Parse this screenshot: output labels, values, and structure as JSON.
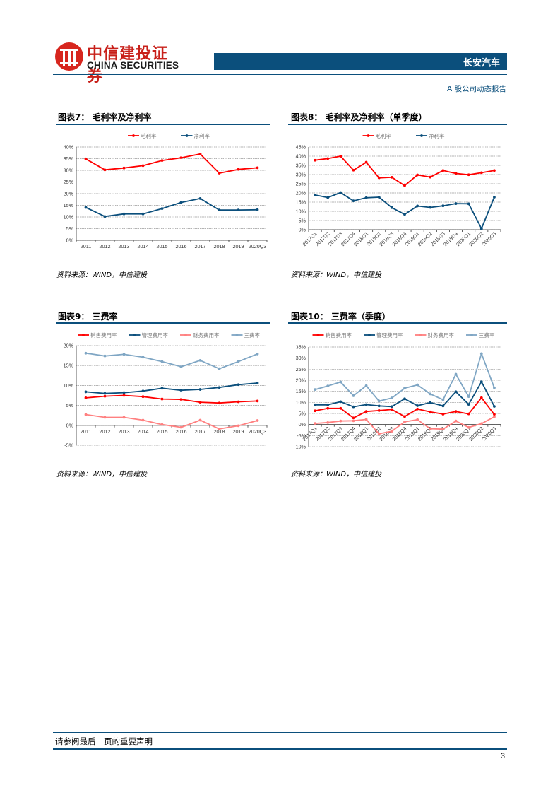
{
  "header": {
    "logo_cn": "中信建投证券",
    "logo_en": "CHINA SECURITIES",
    "company": "长安汽车",
    "report_type": "A 股公司动态报告"
  },
  "figures": [
    {
      "title": "图表7：  毛利率及净利率",
      "source": "资料来源：WIND，中信建投"
    },
    {
      "title": "图表8：  毛利率及净利率（单季度）",
      "source": "资料来源：WIND，中信建投"
    },
    {
      "title": "图表9：  三费率",
      "source": "资料来源：WIND，中信建投"
    },
    {
      "title": "图表10：  三费率（季度）",
      "source": "资料来源：WIND，中信建投"
    }
  ],
  "footer": {
    "disclaimer": "请参阅最后一页的重要声明",
    "page_number": "3"
  },
  "chart_data": [
    {
      "type": "line",
      "title": "毛利率及净利率",
      "categories": [
        "2011",
        "2012",
        "2013",
        "2014",
        "2015",
        "2016",
        "2017",
        "2018",
        "2019",
        "2020Q3"
      ],
      "series": [
        {
          "name": "毛利率",
          "color": "#ff0000",
          "values": [
            34.9,
            30.2,
            31.0,
            32.0,
            34.2,
            35.4,
            37.0,
            28.8,
            30.4,
            31.1
          ]
        },
        {
          "name": "净利率",
          "color": "#0b4f7c",
          "values": [
            14.1,
            10.2,
            11.3,
            11.3,
            13.6,
            16.2,
            17.9,
            13.0,
            13.0,
            13.1
          ]
        }
      ],
      "ylim": [
        0,
        40
      ],
      "yticks": [
        0,
        5,
        10,
        15,
        20,
        25,
        30,
        35,
        40
      ],
      "y_suffix": "%",
      "grid": true,
      "legend_position": "top",
      "rotate_x": false
    },
    {
      "type": "line",
      "title": "毛利率及净利率（单季度）",
      "categories": [
        "2017Q1",
        "2017Q2",
        "2017Q3",
        "2017Q4",
        "2018Q1",
        "2018Q2",
        "2018Q3",
        "2018Q4",
        "2019Q1",
        "2019Q2",
        "2019Q3",
        "2019Q4",
        "2020Q1",
        "2020Q2",
        "2020Q3"
      ],
      "series": [
        {
          "name": "毛利率",
          "color": "#ff0000",
          "values": [
            37.8,
            38.7,
            40.0,
            32.4,
            36.7,
            28.2,
            28.5,
            24.0,
            29.8,
            28.6,
            32.2,
            30.6,
            29.9,
            31.0,
            32.2
          ]
        },
        {
          "name": "净利率",
          "color": "#0b4f7c",
          "values": [
            18.9,
            17.5,
            20.2,
            15.7,
            17.4,
            17.7,
            12.0,
            8.3,
            12.9,
            12.1,
            13.0,
            14.2,
            14.1,
            0.6,
            17.7
          ]
        }
      ],
      "ylim": [
        0,
        45
      ],
      "yticks": [
        0,
        5,
        10,
        15,
        20,
        25,
        30,
        35,
        40,
        45
      ],
      "y_suffix": "%",
      "grid": true,
      "legend_position": "top",
      "rotate_x": true
    },
    {
      "type": "line",
      "title": "三费率",
      "categories": [
        "2011",
        "2012",
        "2013",
        "2014",
        "2015",
        "2016",
        "2017",
        "2018",
        "2019",
        "2020Q3"
      ],
      "series": [
        {
          "name": "销售费用率",
          "color": "#ff0000",
          "values": [
            6.9,
            7.3,
            7.5,
            7.2,
            6.6,
            6.5,
            5.8,
            5.6,
            5.9,
            6.1
          ]
        },
        {
          "name": "管理费用率",
          "color": "#0b4f7c",
          "values": [
            8.4,
            8.0,
            8.2,
            8.6,
            9.3,
            8.8,
            9.0,
            9.5,
            10.2,
            10.6
          ]
        },
        {
          "name": "财务费用率",
          "color": "#ff8080",
          "values": [
            2.7,
            2.0,
            2.0,
            1.3,
            0.2,
            -0.5,
            1.3,
            -0.9,
            -0.1,
            1.2
          ]
        },
        {
          "name": "三费率",
          "color": "#7fa6c4",
          "values": [
            18.1,
            17.4,
            17.8,
            17.1,
            16.0,
            14.7,
            16.3,
            14.2,
            16.0,
            17.9
          ]
        }
      ],
      "ylim": [
        -5,
        20
      ],
      "yticks": [
        -5,
        0,
        5,
        10,
        15,
        20
      ],
      "y_suffix": "%",
      "grid": true,
      "legend_position": "top",
      "rotate_x": false
    },
    {
      "type": "line",
      "title": "三费率（季度）",
      "categories": [
        "2017Q1",
        "2017Q2",
        "2017Q3",
        "2017Q4",
        "2018Q1",
        "2018Q2",
        "2018Q3",
        "2018Q4",
        "2019Q1",
        "2019Q2",
        "2019Q3",
        "2019Q4",
        "2020Q1",
        "2020Q2",
        "2020Q3"
      ],
      "series": [
        {
          "name": "销售费用率",
          "color": "#ff0000",
          "values": [
            6.2,
            7.3,
            7.3,
            3.0,
            5.9,
            6.3,
            6.8,
            3.6,
            7.0,
            5.7,
            4.7,
            5.9,
            4.8,
            12.1,
            4.6
          ]
        },
        {
          "name": "管理费用率",
          "color": "#0b4f7c",
          "values": [
            8.9,
            8.9,
            10.3,
            8.0,
            9.0,
            8.4,
            8.1,
            11.6,
            8.5,
            9.9,
            8.4,
            14.8,
            9.1,
            19.3,
            8.2
          ]
        },
        {
          "name": "财务费用率",
          "color": "#ff8080",
          "values": [
            0.5,
            0.9,
            1.6,
            1.7,
            2.3,
            -4.2,
            -3.0,
            1.2,
            2.2,
            -1.9,
            -2.1,
            1.6,
            -1.3,
            0.4,
            3.5
          ]
        },
        {
          "name": "三费率",
          "color": "#7fa6c4",
          "values": [
            15.8,
            17.4,
            19.2,
            13.0,
            17.5,
            10.6,
            12.0,
            16.4,
            17.9,
            13.8,
            11.2,
            22.7,
            12.6,
            32.0,
            16.6
          ]
        }
      ],
      "ylim": [
        -10,
        35
      ],
      "yticks": [
        -10,
        -5,
        0,
        5,
        10,
        15,
        20,
        25,
        30,
        35
      ],
      "y_suffix": "%",
      "grid": true,
      "legend_position": "top",
      "rotate_x": true
    }
  ]
}
